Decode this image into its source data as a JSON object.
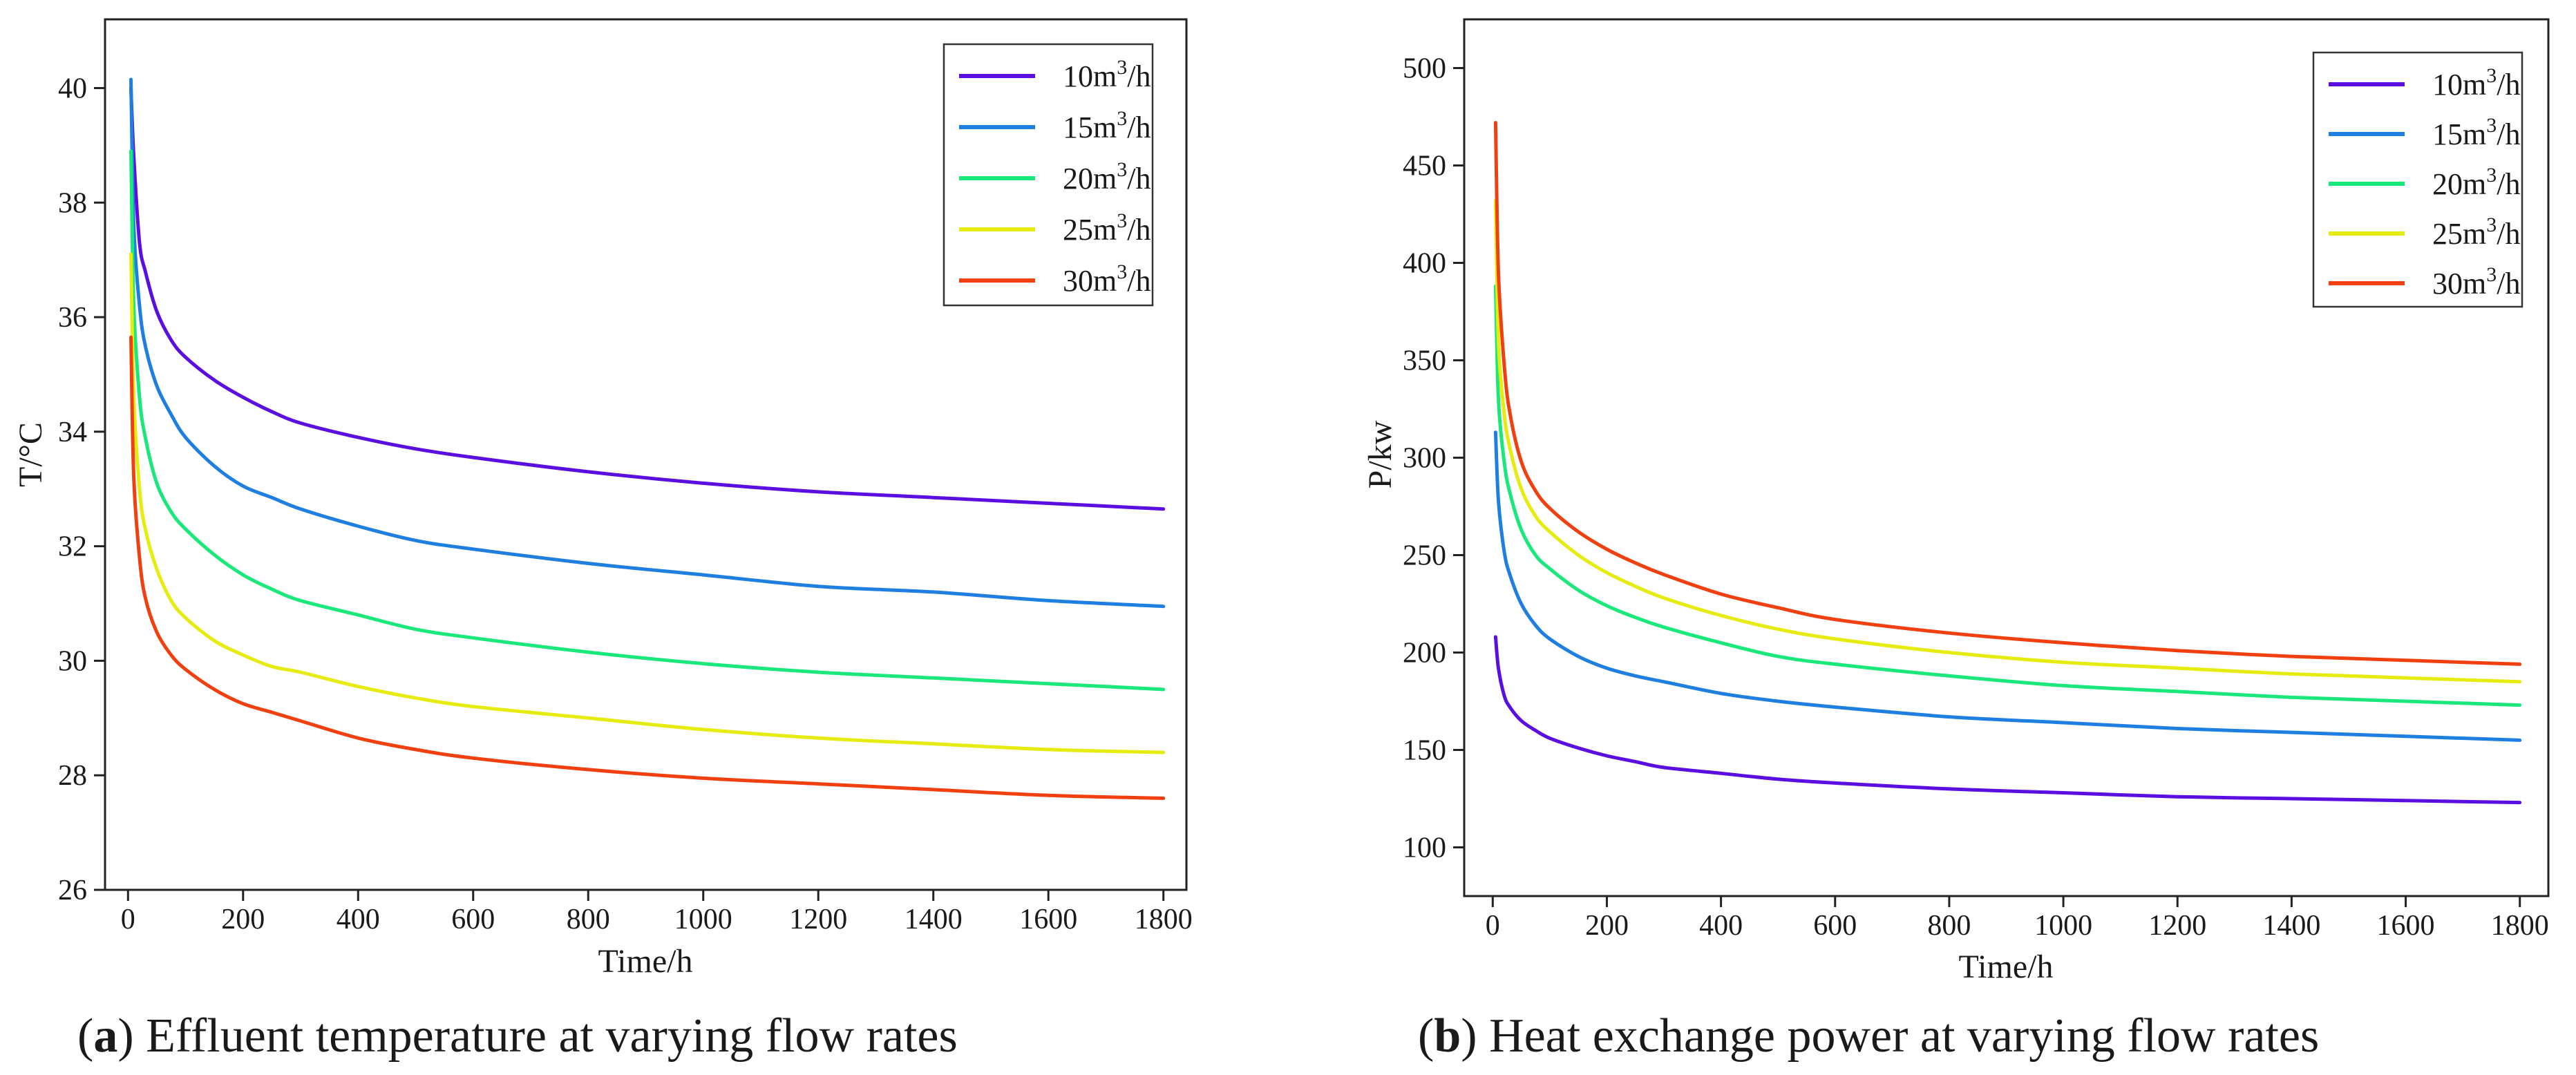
{
  "chart_data": [
    {
      "type": "line",
      "panel_label": "a",
      "caption": "Effluent temperature at varying flow rates",
      "xlabel": "Time/h",
      "ylabel": "T/°C",
      "xlim": [
        -40,
        1840
      ],
      "ylim": [
        26,
        41.2
      ],
      "xticks": [
        0,
        200,
        400,
        600,
        800,
        1000,
        1200,
        1400,
        1600,
        1800
      ],
      "yticks": [
        26,
        28,
        30,
        32,
        34,
        36,
        38,
        40
      ],
      "legend_position": "top-right",
      "series": [
        {
          "name": "10m³/h",
          "name_base": "10m",
          "name_sup": "3",
          "name_tail": "/h",
          "color": "#5b0ee0",
          "x": [
            5,
            10,
            20,
            30,
            50,
            75,
            100,
            150,
            200,
            250,
            300,
            400,
            500,
            600,
            800,
            1000,
            1200,
            1400,
            1600,
            1800
          ],
          "y": [
            40.0,
            38.8,
            37.3,
            36.8,
            36.1,
            35.6,
            35.3,
            34.9,
            34.6,
            34.35,
            34.15,
            33.9,
            33.7,
            33.55,
            33.3,
            33.1,
            32.95,
            32.85,
            32.75,
            32.65
          ]
        },
        {
          "name": "15m³/h",
          "name_base": "15m",
          "name_sup": "3",
          "name_tail": "/h",
          "color": "#1f7fe0",
          "x": [
            5,
            10,
            20,
            30,
            50,
            75,
            100,
            150,
            200,
            250,
            300,
            400,
            500,
            600,
            800,
            1000,
            1200,
            1400,
            1600,
            1800
          ],
          "y": [
            40.15,
            37.6,
            36.2,
            35.5,
            34.8,
            34.3,
            33.9,
            33.4,
            33.05,
            32.85,
            32.65,
            32.35,
            32.1,
            31.95,
            31.7,
            31.5,
            31.3,
            31.2,
            31.05,
            30.95
          ]
        },
        {
          "name": "20m³/h",
          "name_base": "20m",
          "name_sup": "3",
          "name_tail": "/h",
          "color": "#1ae87a",
          "x": [
            5,
            10,
            20,
            30,
            50,
            75,
            100,
            150,
            200,
            250,
            300,
            400,
            500,
            600,
            800,
            1000,
            1200,
            1400,
            1600,
            1800
          ],
          "y": [
            38.9,
            36.2,
            34.6,
            33.9,
            33.1,
            32.6,
            32.3,
            31.85,
            31.5,
            31.25,
            31.05,
            30.8,
            30.55,
            30.4,
            30.15,
            29.95,
            29.8,
            29.7,
            29.6,
            29.5
          ]
        },
        {
          "name": "25m³/h",
          "name_base": "25m",
          "name_sup": "3",
          "name_tail": "/h",
          "color": "#e6ec10",
          "x": [
            5,
            10,
            20,
            30,
            50,
            75,
            100,
            150,
            200,
            250,
            300,
            400,
            500,
            600,
            800,
            1000,
            1200,
            1400,
            1600,
            1800
          ],
          "y": [
            37.1,
            34.6,
            33.0,
            32.3,
            31.6,
            31.05,
            30.75,
            30.35,
            30.1,
            29.9,
            29.8,
            29.55,
            29.35,
            29.2,
            29.0,
            28.8,
            28.65,
            28.55,
            28.45,
            28.4
          ]
        },
        {
          "name": "30m³/h",
          "name_base": "30m",
          "name_sup": "3",
          "name_tail": "/h",
          "color": "#f04010",
          "x": [
            5,
            10,
            20,
            30,
            50,
            75,
            100,
            150,
            200,
            250,
            300,
            400,
            500,
            600,
            800,
            1000,
            1200,
            1400,
            1600,
            1800
          ],
          "y": [
            35.65,
            33.2,
            31.8,
            31.1,
            30.5,
            30.1,
            29.85,
            29.5,
            29.25,
            29.1,
            28.95,
            28.65,
            28.45,
            28.3,
            28.1,
            27.95,
            27.85,
            27.75,
            27.65,
            27.6
          ]
        }
      ]
    },
    {
      "type": "line",
      "panel_label": "b",
      "caption": "Heat exchange power at varying flow rates",
      "xlabel": "Time/h",
      "ylabel": "P/kw",
      "xlim": [
        -50,
        1850
      ],
      "ylim": [
        75,
        525
      ],
      "xticks": [
        0,
        200,
        400,
        600,
        800,
        1000,
        1200,
        1400,
        1600,
        1800
      ],
      "yticks": [
        100,
        150,
        200,
        250,
        300,
        350,
        400,
        450,
        500
      ],
      "legend_position": "top-right",
      "series": [
        {
          "name": "10m³/h",
          "name_base": "10m",
          "name_sup": "3",
          "name_tail": "/h",
          "color": "#5b0ee0",
          "x": [
            5,
            10,
            20,
            30,
            50,
            75,
            100,
            150,
            200,
            250,
            300,
            400,
            500,
            600,
            800,
            1000,
            1200,
            1400,
            1600,
            1800
          ],
          "y": [
            208,
            192,
            178,
            172,
            165,
            160,
            156,
            151,
            147,
            144,
            141,
            138,
            135,
            133,
            130,
            128,
            126,
            125,
            124,
            123
          ]
        },
        {
          "name": "15m³/h",
          "name_base": "15m",
          "name_sup": "3",
          "name_tail": "/h",
          "color": "#1f7fe0",
          "x": [
            5,
            10,
            20,
            30,
            50,
            75,
            100,
            150,
            200,
            250,
            300,
            400,
            500,
            600,
            800,
            1000,
            1200,
            1400,
            1600,
            1800
          ],
          "y": [
            313,
            278,
            252,
            240,
            225,
            214,
            207,
            198,
            192,
            188,
            185,
            179,
            175,
            172,
            167,
            164,
            161,
            159,
            157,
            155
          ]
        },
        {
          "name": "20m³/h",
          "name_base": "20m",
          "name_sup": "3",
          "name_tail": "/h",
          "color": "#1ae87a",
          "x": [
            5,
            10,
            20,
            30,
            50,
            75,
            100,
            150,
            200,
            250,
            300,
            400,
            500,
            600,
            800,
            1000,
            1200,
            1400,
            1600,
            1800
          ],
          "y": [
            388,
            330,
            298,
            282,
            263,
            250,
            243,
            232,
            224,
            218,
            213,
            205,
            198,
            194,
            188,
            183,
            180,
            177,
            175,
            173
          ]
        },
        {
          "name": "25m³/h",
          "name_base": "25m",
          "name_sup": "3",
          "name_tail": "/h",
          "color": "#e6ec10",
          "x": [
            5,
            10,
            20,
            30,
            50,
            75,
            100,
            150,
            200,
            250,
            300,
            400,
            500,
            600,
            800,
            1000,
            1200,
            1400,
            1600,
            1800
          ],
          "y": [
            432,
            360,
            323,
            305,
            284,
            270,
            262,
            250,
            241,
            234,
            228,
            219,
            212,
            207,
            200,
            195,
            192,
            189,
            187,
            185
          ]
        },
        {
          "name": "30m³/h",
          "name_base": "30m",
          "name_sup": "3",
          "name_tail": "/h",
          "color": "#f04010",
          "x": [
            5,
            10,
            20,
            30,
            50,
            75,
            100,
            150,
            200,
            250,
            300,
            400,
            500,
            600,
            800,
            1000,
            1200,
            1400,
            1600,
            1800
          ],
          "y": [
            472,
            395,
            348,
            323,
            298,
            283,
            274,
            262,
            253,
            246,
            240,
            230,
            223,
            217,
            210,
            205,
            201,
            198,
            196,
            194
          ]
        }
      ]
    }
  ]
}
